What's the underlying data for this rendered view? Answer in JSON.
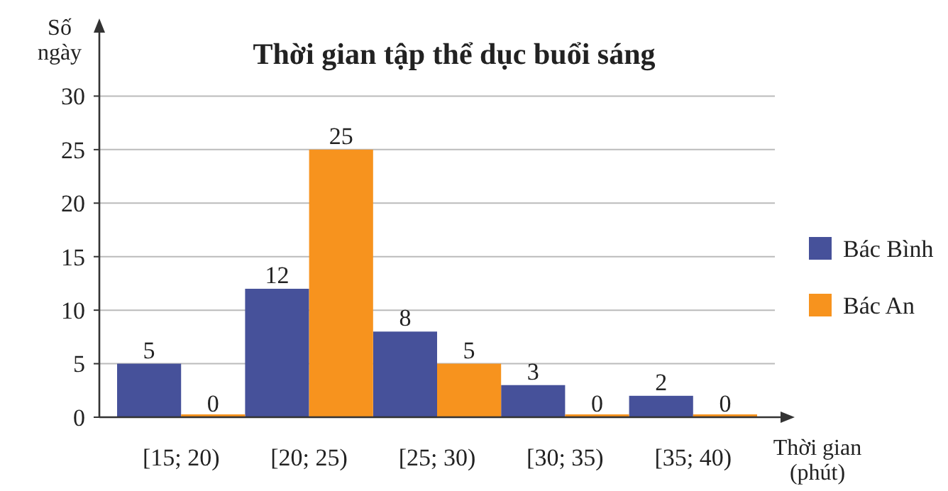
{
  "chart_data": {
    "type": "bar",
    "title": "Thời gian tập thể dục buổi sáng",
    "xlabel": "Thời gian\n(phút)",
    "ylabel": "Số\nngày",
    "categories": [
      "[15; 20)",
      "[20; 25)",
      "[25; 30)",
      "[30; 35)",
      "[35; 40)"
    ],
    "series": [
      {
        "name": "Bác Bình",
        "color": "#46519a",
        "values": [
          5,
          12,
          8,
          3,
          2
        ]
      },
      {
        "name": "Bác An",
        "color": "#f7931e",
        "values": [
          0,
          25,
          5,
          0,
          0
        ]
      }
    ],
    "ylim": [
      0,
      35
    ],
    "yticks": [
      0,
      5,
      10,
      15,
      20,
      25,
      30
    ],
    "grid": "y",
    "legend": "right",
    "data_labels": true
  }
}
